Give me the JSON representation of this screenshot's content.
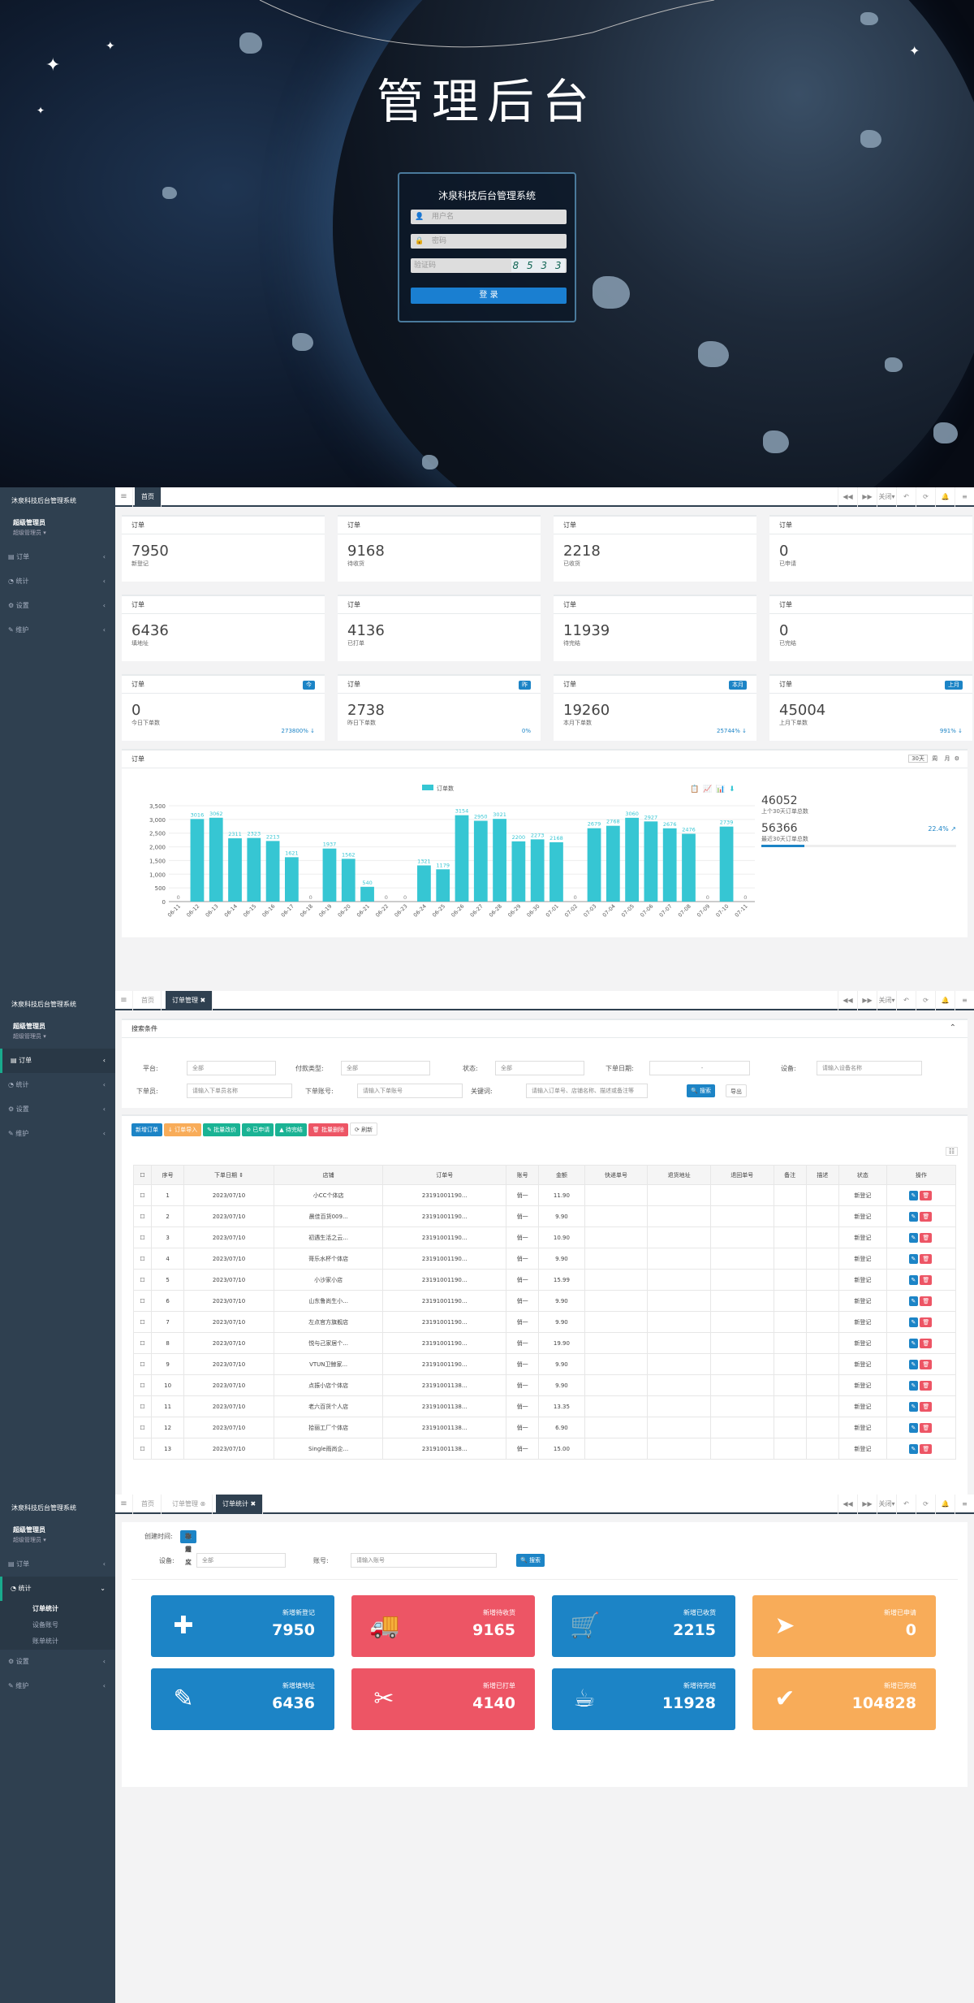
{
  "login": {
    "title": "管理后台",
    "system_name": "沐泉科技后台管理系统",
    "username_placeholder": "用户名",
    "password_placeholder": "密码",
    "captcha_placeholder": "验证码",
    "captcha_text": "8 5 3 3",
    "submit": "登 录"
  },
  "app": {
    "brand": "沐泉科技后台管理系统",
    "user_name": "超级管理员",
    "user_role": "超级管理员 ▾",
    "nav": [
      "订单",
      "统计",
      "设置",
      "维护"
    ],
    "stats_sub": [
      "订单统计",
      "设备账号",
      "账单统计"
    ]
  },
  "tabbar": {
    "home": "首页",
    "orders": "订单管理",
    "stats": "订单统计",
    "close": "关闭▾"
  },
  "dashboard": {
    "row1": [
      {
        "h": "订单",
        "v": "7950",
        "l": "新登记"
      },
      {
        "h": "订单",
        "v": "9168",
        "l": "待收货"
      },
      {
        "h": "订单",
        "v": "2218",
        "l": "已收货"
      },
      {
        "h": "订单",
        "v": "0",
        "l": "已申请"
      }
    ],
    "row2": [
      {
        "h": "订单",
        "v": "6436",
        "l": "填地址"
      },
      {
        "h": "订单",
        "v": "4136",
        "l": "已打单"
      },
      {
        "h": "订单",
        "v": "11939",
        "l": "待完结"
      },
      {
        "h": "订单",
        "v": "0",
        "l": "已完结"
      }
    ],
    "row3": [
      {
        "h": "订单",
        "v": "0",
        "l": "今日下单数",
        "b": "今",
        "p": "273800% ↓"
      },
      {
        "h": "订单",
        "v": "2738",
        "l": "昨日下单数",
        "b": "昨",
        "p": "0%"
      },
      {
        "h": "订单",
        "v": "19260",
        "l": "本月下单数",
        "b": "本月",
        "p": "25744% ↓"
      },
      {
        "h": "订单",
        "v": "45004",
        "l": "上月下单数",
        "b": "上月",
        "p": "991% ↓"
      }
    ],
    "chart_title": "订单",
    "range": [
      "30天",
      "周",
      "月"
    ],
    "side_total": "46052",
    "side_total_label": "上个30天订单总数",
    "side_recent": "56366",
    "side_recent_label": "最近30天订单总数",
    "side_pct": "22.4% ↗"
  },
  "chart_data": {
    "type": "bar",
    "legend": "订单数",
    "categories": [
      "06-11",
      "06-12",
      "06-13",
      "06-14",
      "06-15",
      "06-16",
      "06-17",
      "06-18",
      "06-19",
      "06-20",
      "06-21",
      "06-22",
      "06-23",
      "06-24",
      "06-25",
      "06-26",
      "06-27",
      "06-28",
      "06-29",
      "06-30",
      "07-01",
      "07-02",
      "07-03",
      "07-04",
      "07-05",
      "07-06",
      "07-07",
      "07-08",
      "07-09",
      "07-10",
      "07-11"
    ],
    "values": [
      0,
      3016,
      3062,
      2311,
      2323,
      2213,
      1621,
      0,
      1937,
      1562,
      540,
      0,
      0,
      1321,
      1179,
      3154,
      2950,
      3021,
      2200,
      2273,
      2168,
      0,
      2679,
      2768,
      3060,
      2927,
      2676,
      2476,
      0,
      2739,
      0
    ],
    "ylim": [
      0,
      3500
    ],
    "yticks": [
      "3,500",
      "3,000",
      "2,500",
      "2,000",
      "1,500",
      "1,000",
      "500",
      "0"
    ],
    "color": "#36c6d3"
  },
  "orders": {
    "search_title": "搜索条件",
    "labels": {
      "platform": "平台:",
      "paytype": "付款类型:",
      "status": "状态:",
      "date": "下单日期:",
      "device": "设备:",
      "orderer": "下单员:",
      "account": "下单账号:",
      "keyword": "关键词:"
    },
    "values": {
      "platform": "全部",
      "paytype": "全部",
      "status": "全部",
      "date": "-",
      "device": "请输入设备名称",
      "orderer": "请输入下单员名称",
      "account": "请输入下单账号",
      "keyword": "请输入订单号、店铺名称、描述或备注等"
    },
    "search_btn": "🔍 搜索",
    "export_btn": "导出",
    "actions": [
      "新增订单",
      "↓ 订单导入",
      "✎ 批量改价",
      "⊘ 已申请",
      "▲ 待完结",
      "🗑 批量删除",
      "⟳ 刷新"
    ],
    "columns": [
      "序号",
      "下单日期 ⇕",
      "店铺",
      "订单号",
      "账号",
      "金额",
      "快递单号",
      "退货地址",
      "退回单号",
      "备注",
      "描述",
      "状态",
      "操作"
    ],
    "rows": [
      [
        "1",
        "2023/07/10",
        "小CC个体店",
        "23191001190...",
        "俏一",
        "11.90",
        "新登记"
      ],
      [
        "2",
        "2023/07/10",
        "晨佳百货009...",
        "23191001190...",
        "俏一",
        "9.90",
        "新登记"
      ],
      [
        "3",
        "2023/07/10",
        "初遇生活之云...",
        "23191001190...",
        "俏一",
        "10.90",
        "新登记"
      ],
      [
        "4",
        "2023/07/10",
        "哥乐水杯个体店",
        "23191001190...",
        "俏一",
        "9.90",
        "新登记"
      ],
      [
        "5",
        "2023/07/10",
        "小沙家小店",
        "23191001190...",
        "俏一",
        "15.99",
        "新登记"
      ],
      [
        "6",
        "2023/07/10",
        "山东鲁尚生小...",
        "23191001190...",
        "俏一",
        "9.90",
        "新登记"
      ],
      [
        "7",
        "2023/07/10",
        "左点官方旗舰店",
        "23191001190...",
        "俏一",
        "9.90",
        "新登记"
      ],
      [
        "8",
        "2023/07/10",
        "悦与己家居个...",
        "23191001190...",
        "俏一",
        "19.90",
        "新登记"
      ],
      [
        "9",
        "2023/07/10",
        "VTUN卫鲸家...",
        "23191001190...",
        "俏一",
        "9.90",
        "新登记"
      ],
      [
        "10",
        "2023/07/10",
        "点振小店个体店",
        "23191001138...",
        "俏一",
        "9.90",
        "新登记"
      ],
      [
        "11",
        "2023/07/10",
        "老六百货个人店",
        "23191001138...",
        "俏一",
        "13.35",
        "新登记"
      ],
      [
        "12",
        "2023/07/10",
        "拾丽工厂个体店",
        "23191001138...",
        "俏一",
        "6.90",
        "新登记"
      ],
      [
        "13",
        "2023/07/10",
        "Single雨尚企...",
        "23191001138...",
        "俏一",
        "15.00",
        "新登记"
      ]
    ]
  },
  "stats": {
    "time_label": "创建时间:",
    "filters": [
      "全部",
      "昨天",
      "今天",
      "本周",
      "本月",
      "本季度",
      "本年",
      "自定义"
    ],
    "device_label": "设备:",
    "device_value": "全部",
    "account_label": "账号:",
    "account_placeholder": "请输入账号",
    "search_btn": "🔍 搜索",
    "cards": [
      {
        "t": "新增新登记",
        "v": "7950",
        "color": "#1c84c6",
        "icon": "plus-icon",
        "g": "✚"
      },
      {
        "t": "新增待收货",
        "v": "9165",
        "color": "#ed5565",
        "icon": "truck-icon",
        "g": "🚚"
      },
      {
        "t": "新增已收货",
        "v": "2215",
        "color": "#1c84c6",
        "icon": "cart-icon",
        "g": "🛒"
      },
      {
        "t": "新增已申请",
        "v": "0",
        "color": "#f8ac59",
        "icon": "paper-plane-icon",
        "g": "➤"
      },
      {
        "t": "新增填地址",
        "v": "6436",
        "color": "#1c84c6",
        "icon": "edit-icon",
        "g": "✎"
      },
      {
        "t": "新增已打单",
        "v": "4140",
        "color": "#ed5565",
        "icon": "ticket-icon",
        "g": "✂"
      },
      {
        "t": "新增待完结",
        "v": "11928",
        "color": "#1c84c6",
        "icon": "coffee-icon",
        "g": "☕"
      },
      {
        "t": "新增已完结",
        "v": "104828",
        "color": "#f8ac59",
        "icon": "check-icon",
        "g": "✔"
      }
    ]
  }
}
